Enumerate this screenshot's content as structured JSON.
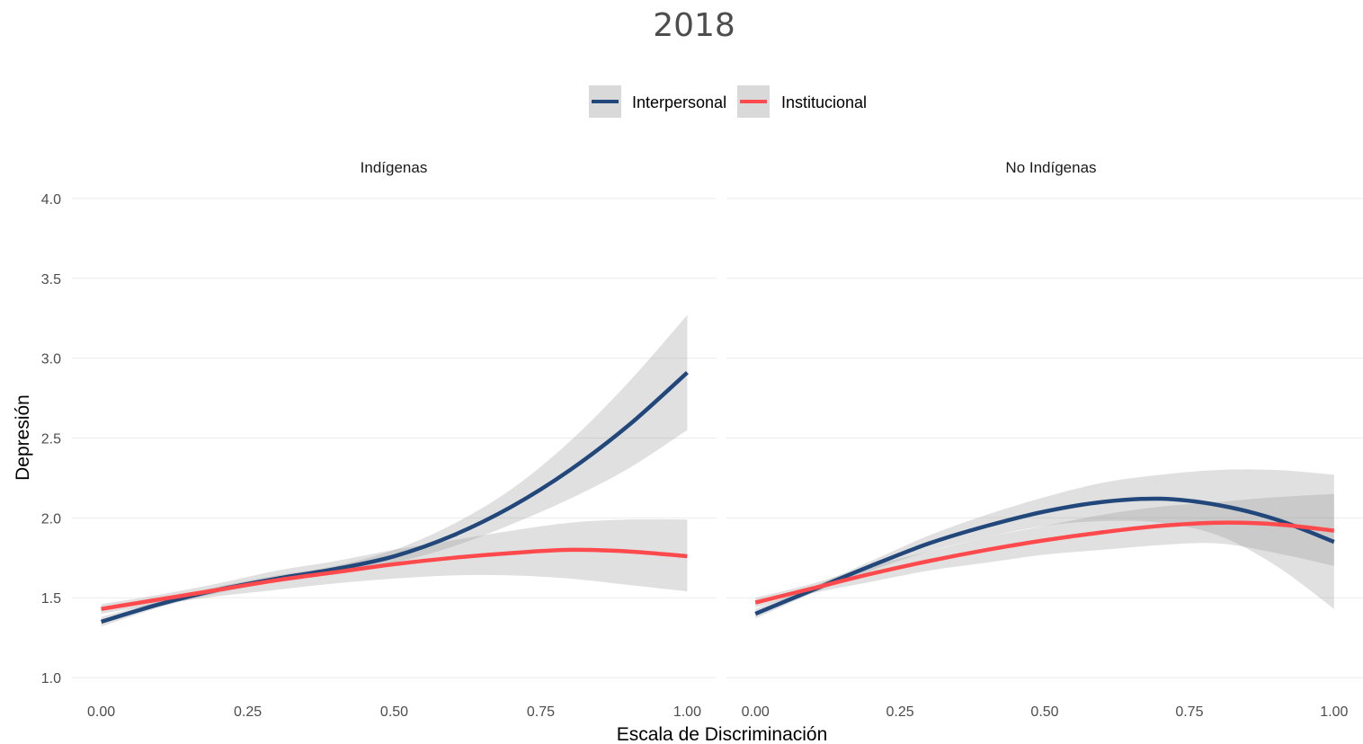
{
  "chart_data": {
    "type": "line",
    "title": "2018",
    "xlabel": "Escala de Discriminación",
    "ylabel": "Depresión",
    "ylim": [
      0.95,
      4.05
    ],
    "xlim": [
      -0.05,
      1.05
    ],
    "yticks": [
      "1.0",
      "1.5",
      "2.0",
      "2.5",
      "3.0",
      "3.5",
      "4.0"
    ],
    "xticks": [
      "0.00",
      "0.25",
      "0.50",
      "0.75",
      "1.00"
    ],
    "grid": true,
    "legend_position": "top",
    "legend": [
      {
        "name": "Interpersonal",
        "color": "#22477a"
      },
      {
        "name": "Institucional",
        "color": "#ff4a4d"
      }
    ],
    "x": [
      0.0,
      0.1,
      0.2,
      0.3,
      0.4,
      0.5,
      0.6,
      0.7,
      0.8,
      0.9,
      1.0
    ],
    "panels": [
      {
        "name": "Indígenas",
        "series": [
          {
            "name": "Interpersonal",
            "color": "#22477a",
            "values": [
              1.35,
              1.46,
              1.55,
              1.62,
              1.68,
              1.76,
              1.89,
              2.07,
              2.3,
              2.58,
              2.91
            ],
            "lower": [
              1.32,
              1.44,
              1.53,
              1.6,
              1.66,
              1.72,
              1.82,
              1.96,
              2.12,
              2.31,
              2.55
            ],
            "upper": [
              1.38,
              1.48,
              1.57,
              1.64,
              1.7,
              1.8,
              1.96,
              2.18,
              2.48,
              2.85,
              3.27
            ]
          },
          {
            "name": "Institucional",
            "color": "#ff4a4d",
            "values": [
              1.43,
              1.49,
              1.55,
              1.61,
              1.66,
              1.71,
              1.75,
              1.78,
              1.8,
              1.79,
              1.76
            ],
            "lower": [
              1.4,
              1.46,
              1.51,
              1.55,
              1.59,
              1.62,
              1.64,
              1.64,
              1.62,
              1.58,
              1.54
            ],
            "upper": [
              1.46,
              1.52,
              1.59,
              1.67,
              1.73,
              1.8,
              1.86,
              1.92,
              1.97,
              1.99,
              1.99
            ]
          }
        ]
      },
      {
        "name": "No Indígenas",
        "series": [
          {
            "name": "Interpersonal",
            "color": "#22477a",
            "values": [
              1.4,
              1.55,
              1.7,
              1.84,
              1.95,
              2.04,
              2.1,
              2.12,
              2.08,
              1.99,
              1.85
            ],
            "lower": [
              1.37,
              1.53,
              1.67,
              1.79,
              1.88,
              1.95,
              1.98,
              1.97,
              1.89,
              1.7,
              1.43
            ],
            "upper": [
              1.43,
              1.57,
              1.73,
              1.89,
              2.02,
              2.13,
              2.22,
              2.27,
              2.3,
              2.3,
              2.27
            ]
          },
          {
            "name": "Institucional",
            "color": "#ff4a4d",
            "values": [
              1.47,
              1.56,
              1.65,
              1.73,
              1.8,
              1.86,
              1.91,
              1.95,
              1.97,
              1.96,
              1.92
            ],
            "lower": [
              1.44,
              1.53,
              1.6,
              1.67,
              1.72,
              1.77,
              1.8,
              1.83,
              1.84,
              1.78,
              1.7
            ],
            "upper": [
              1.5,
              1.59,
              1.7,
              1.79,
              1.88,
              1.95,
              2.02,
              2.07,
              2.1,
              2.13,
              2.15
            ]
          }
        ]
      }
    ]
  }
}
